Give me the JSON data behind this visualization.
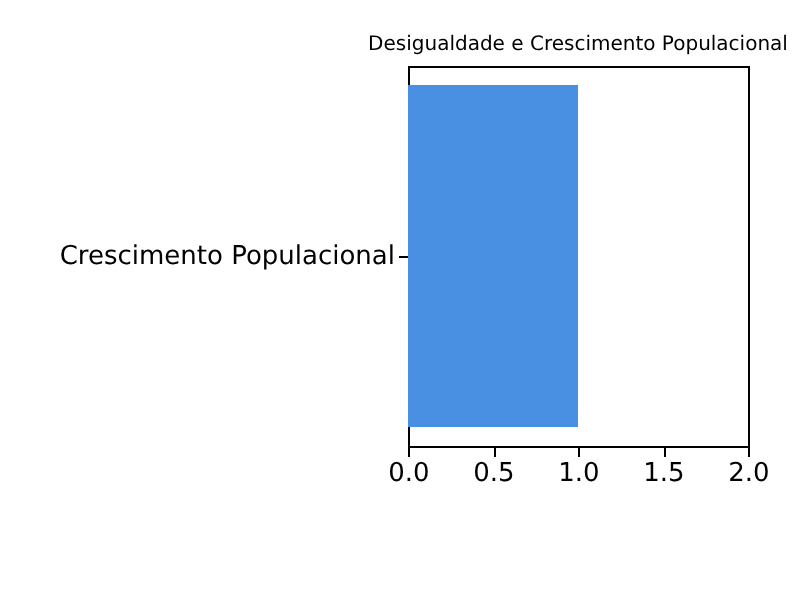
{
  "chart_data": {
    "type": "bar",
    "orientation": "horizontal",
    "title": "Desigualdade e Crescimento Populacional",
    "categories": [
      "Crescimento Populacional"
    ],
    "values": [
      1.0
    ],
    "color": "#4a90e2",
    "xlim": [
      0,
      2
    ],
    "xticks": [
      {
        "value": 0,
        "label": "0.0"
      },
      0.5,
      {
        "value": 1,
        "label": "1.0"
      },
      1.5,
      {
        "value": 2,
        "label": "2.0"
      }
    ],
    "grid": false
  }
}
